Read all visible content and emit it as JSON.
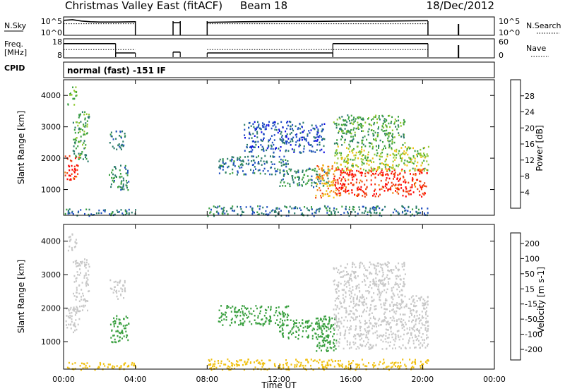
{
  "header": {
    "title": "Christmas Valley East (fitACF)",
    "beam": "Beam 18",
    "date": "18/Dec/2012",
    "cpid_label": "CPID",
    "cpid_value": "normal (fast) -151 IF"
  },
  "chart_data": [
    {
      "type": "line",
      "panel": "noise",
      "left_label": "N.Sky",
      "right_label": "N.Search",
      "y_ticks_left": [
        "10^5",
        "10^0"
      ],
      "y_ticks_right": [
        "10^5",
        "10^0"
      ],
      "y_scale": "log",
      "x_range": [
        "00:00",
        "24:00"
      ],
      "data_segments": [
        [
          0.0,
          4.0
        ],
        [
          6.1,
          6.5
        ],
        [
          8.0,
          20.3
        ]
      ],
      "series": [
        {
          "style": "solid",
          "x": [
            0,
            0.5,
            1,
            1.5,
            2,
            3,
            4,
            6.1,
            6.5,
            8,
            10,
            12,
            14,
            16,
            18,
            20.3
          ],
          "y_log": [
            4.2,
            4.4,
            4.0,
            3.8,
            3.7,
            3.7,
            3.8,
            3.5,
            3.5,
            3.6,
            3.8,
            3.9,
            3.9,
            4.0,
            4.0,
            4.1
          ]
        },
        {
          "style": "dotted",
          "x": [
            0,
            4,
            8,
            20.3
          ],
          "y_log": [
            3.2,
            3.2,
            3.2,
            3.2
          ]
        }
      ],
      "markers_x": [
        22
      ]
    },
    {
      "type": "line",
      "panel": "frequency",
      "left_label": "Freq. [MHz]",
      "right_label": "Nave",
      "y_ticks_left": [
        "18",
        "8"
      ],
      "y_ticks_right": [
        "60",
        "0"
      ],
      "ylim_left": [
        8,
        18
      ],
      "ylim_right": [
        0,
        60
      ],
      "series": [
        {
          "name": "Freq",
          "style": "solid",
          "segments": [
            {
              "x": [
                0,
                2.9
              ],
              "y": 16
            },
            {
              "x": [
                2.9,
                4.0
              ],
              "y": 10.5
            },
            {
              "x": [
                6.1,
                6.5
              ],
              "y": 11
            },
            {
              "x": [
                8.0,
                15.0
              ],
              "y": 10.5
            },
            {
              "x": [
                15.0,
                20.3
              ],
              "y": 16
            }
          ]
        },
        {
          "name": "Nave",
          "style": "dotted",
          "segments": [
            {
              "x": [
                0,
                4.0
              ],
              "y": 12.5
            },
            {
              "x": [
                8.0,
                20.3
              ],
              "y": 12.5
            }
          ]
        }
      ],
      "markers_x": [
        22
      ]
    },
    {
      "type": "heatmap",
      "panel": "power",
      "ylabel": "Slant Range [km]",
      "y_ticks": [
        1000,
        2000,
        3000,
        4000
      ],
      "ylim": [
        180,
        4500
      ],
      "x_ticks": [
        "00:00",
        "04:00",
        "08:00",
        "12:00",
        "16:00",
        "20:00",
        "00:00"
      ],
      "colorbar_label": "Power [dB]",
      "colorbar_ticks": [
        4,
        8,
        12,
        16,
        20,
        24,
        28
      ],
      "colorbar_colors": [
        "#1010e0",
        "#2050c0",
        "#2a7a6a",
        "#3aa040",
        "#90c830",
        "#f0c010",
        "#f08010",
        "#f04010",
        "#ff0000"
      ],
      "regions": [
        {
          "t": [
            0.05,
            0.85
          ],
          "r": [
            1300,
            2100
          ],
          "v": 28
        },
        {
          "t": [
            0.5,
            1.4
          ],
          "r": [
            1900,
            3500
          ],
          "v": 12
        },
        {
          "t": [
            0.2,
            0.7
          ],
          "r": [
            3700,
            4300
          ],
          "v": 14
        },
        {
          "t": [
            2.5,
            3.4
          ],
          "r": [
            2300,
            2900
          ],
          "v": 8
        },
        {
          "t": [
            2.5,
            3.6
          ],
          "r": [
            1000,
            1800
          ],
          "v": 10
        },
        {
          "t": [
            8.6,
            12.5
          ],
          "r": [
            1500,
            2100
          ],
          "v": 8
        },
        {
          "t": [
            10.0,
            14.5
          ],
          "r": [
            2200,
            3200
          ],
          "v": 6
        },
        {
          "t": [
            12.0,
            14.8
          ],
          "r": [
            1100,
            1700
          ],
          "v": 10
        },
        {
          "t": [
            14.0,
            15.2
          ],
          "r": [
            700,
            1800
          ],
          "v": 22
        },
        {
          "t": [
            15.0,
            20.3
          ],
          "r": [
            800,
            1700
          ],
          "v": 28
        },
        {
          "t": [
            15.0,
            20.3
          ],
          "r": [
            1600,
            2400
          ],
          "v": 16
        },
        {
          "t": [
            15.0,
            19.0
          ],
          "r": [
            2400,
            3400
          ],
          "v": 12
        },
        {
          "t": [
            8.0,
            20.3
          ],
          "r": [
            180,
            500
          ],
          "v": 8
        },
        {
          "t": [
            0.0,
            4.0
          ],
          "r": [
            180,
            400
          ],
          "v": 8
        }
      ]
    },
    {
      "type": "heatmap",
      "panel": "velocity",
      "ylabel": "Slant Range [km]",
      "y_ticks": [
        1000,
        2000,
        3000,
        4000
      ],
      "ylim": [
        180,
        4500
      ],
      "x_ticks": [
        "00:00",
        "04:00",
        "08:00",
        "12:00",
        "16:00",
        "20:00",
        "00:00"
      ],
      "xlabel": "Time UT",
      "colorbar_label": "Velocity [m s-1]",
      "colorbar_ticks": [
        200,
        100,
        50,
        15,
        -15,
        -50,
        -100,
        -200
      ],
      "colorbar_colors": [
        "#2040c0",
        "#2a7a6a",
        "#3aa040",
        "#80d040",
        "#c8c8c8",
        "#f0c010",
        "#f08010",
        "#f04010",
        "#ff0000"
      ],
      "regions": [
        {
          "t": [
            0.05,
            0.85
          ],
          "r": [
            1300,
            2100
          ],
          "v": 0
        },
        {
          "t": [
            0.5,
            1.4
          ],
          "r": [
            1900,
            3500
          ],
          "v": 0
        },
        {
          "t": [
            0.2,
            0.7
          ],
          "r": [
            3700,
            4300
          ],
          "v": 0
        },
        {
          "t": [
            2.5,
            3.6
          ],
          "r": [
            1000,
            1800
          ],
          "v": 40
        },
        {
          "t": [
            2.5,
            3.4
          ],
          "r": [
            2300,
            2900
          ],
          "v": 0
        },
        {
          "t": [
            8.6,
            12.5
          ],
          "r": [
            1500,
            2100
          ],
          "v": 40
        },
        {
          "t": [
            12.0,
            14.8
          ],
          "r": [
            1100,
            1700
          ],
          "v": 40
        },
        {
          "t": [
            14.0,
            15.2
          ],
          "r": [
            700,
            1800
          ],
          "v": 40
        },
        {
          "t": [
            15.0,
            20.3
          ],
          "r": [
            800,
            2400
          ],
          "v": 0
        },
        {
          "t": [
            15.0,
            19.0
          ],
          "r": [
            2400,
            3400
          ],
          "v": 0
        },
        {
          "t": [
            8.0,
            20.3
          ],
          "r": [
            180,
            500
          ],
          "v": -40
        },
        {
          "t": [
            0.0,
            4.0
          ],
          "r": [
            180,
            400
          ],
          "v": -20
        }
      ]
    }
  ]
}
